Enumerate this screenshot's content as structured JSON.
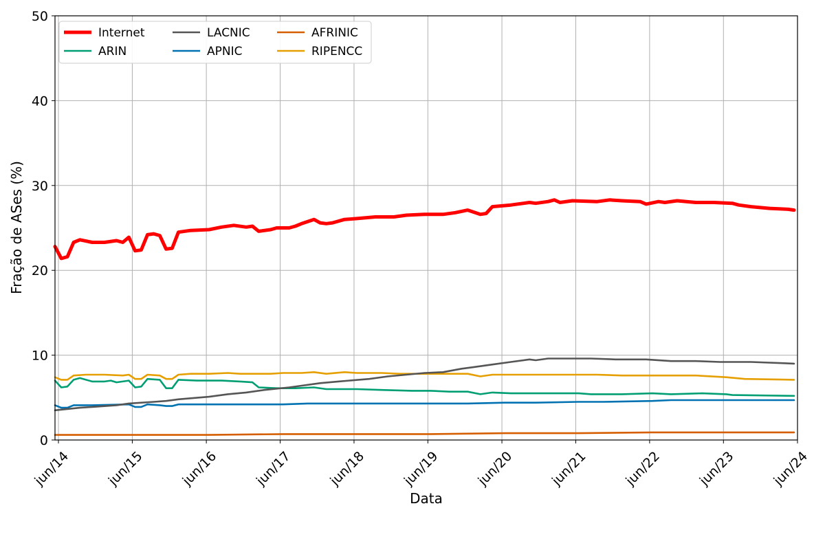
{
  "chart_data": {
    "type": "line",
    "title": "",
    "xlabel": "Data",
    "ylabel": "Fração de ASes (%)",
    "ylim": [
      0,
      50
    ],
    "yticks": [
      0,
      10,
      20,
      30,
      40,
      50
    ],
    "xlim": [
      "2014-05-15",
      "2024-06-01"
    ],
    "xticks": [
      {
        "date": "2014-06-01",
        "label": "jun/14"
      },
      {
        "date": "2015-06-01",
        "label": "jun/15"
      },
      {
        "date": "2016-06-01",
        "label": "jun/16"
      },
      {
        "date": "2017-06-01",
        "label": "jun/17"
      },
      {
        "date": "2018-06-01",
        "label": "jun/18"
      },
      {
        "date": "2019-06-01",
        "label": "jun/19"
      },
      {
        "date": "2020-06-01",
        "label": "jun/20"
      },
      {
        "date": "2021-06-01",
        "label": "jun/21"
      },
      {
        "date": "2022-06-01",
        "label": "jun/22"
      },
      {
        "date": "2023-06-01",
        "label": "jun/23"
      },
      {
        "date": "2024-06-01",
        "label": "jun/24"
      }
    ],
    "grid": true,
    "legend_position": "top-left",
    "legend_columns": 3,
    "series": [
      {
        "name": "Internet",
        "color": "#ff0000",
        "points": [
          [
            "2014-05-15",
            22.8
          ],
          [
            "2014-06-15",
            21.4
          ],
          [
            "2014-07-15",
            21.6
          ],
          [
            "2014-08-15",
            23.3
          ],
          [
            "2014-09-15",
            23.6
          ],
          [
            "2014-11-15",
            23.3
          ],
          [
            "2015-01-15",
            23.3
          ],
          [
            "2015-03-15",
            23.5
          ],
          [
            "2015-04-15",
            23.3
          ],
          [
            "2015-05-15",
            23.9
          ],
          [
            "2015-06-15",
            22.3
          ],
          [
            "2015-07-15",
            22.4
          ],
          [
            "2015-08-15",
            24.2
          ],
          [
            "2015-09-15",
            24.3
          ],
          [
            "2015-10-15",
            24.1
          ],
          [
            "2015-11-15",
            22.5
          ],
          [
            "2015-12-15",
            22.6
          ],
          [
            "2016-01-15",
            24.5
          ],
          [
            "2016-03-15",
            24.7
          ],
          [
            "2016-06-15",
            24.8
          ],
          [
            "2016-08-15",
            25.1
          ],
          [
            "2016-10-15",
            25.3
          ],
          [
            "2016-12-15",
            25.1
          ],
          [
            "2017-01-15",
            25.2
          ],
          [
            "2017-02-15",
            24.6
          ],
          [
            "2017-04-15",
            24.8
          ],
          [
            "2017-05-15",
            25.0
          ],
          [
            "2017-07-15",
            25.0
          ],
          [
            "2017-08-15",
            25.2
          ],
          [
            "2017-09-15",
            25.5
          ],
          [
            "2017-11-15",
            26.0
          ],
          [
            "2017-12-15",
            25.6
          ],
          [
            "2018-01-15",
            25.5
          ],
          [
            "2018-02-15",
            25.6
          ],
          [
            "2018-04-15",
            26.0
          ],
          [
            "2018-06-15",
            26.1
          ],
          [
            "2018-09-15",
            26.3
          ],
          [
            "2018-12-15",
            26.3
          ],
          [
            "2019-02-15",
            26.5
          ],
          [
            "2019-05-15",
            26.6
          ],
          [
            "2019-08-15",
            26.6
          ],
          [
            "2019-10-15",
            26.8
          ],
          [
            "2019-12-15",
            27.1
          ],
          [
            "2020-02-15",
            26.6
          ],
          [
            "2020-03-15",
            26.7
          ],
          [
            "2020-04-15",
            27.5
          ],
          [
            "2020-07-15",
            27.7
          ],
          [
            "2020-10-15",
            28.0
          ],
          [
            "2020-11-15",
            27.9
          ],
          [
            "2021-01-15",
            28.1
          ],
          [
            "2021-02-15",
            28.3
          ],
          [
            "2021-03-15",
            28.0
          ],
          [
            "2021-05-15",
            28.2
          ],
          [
            "2021-09-15",
            28.1
          ],
          [
            "2021-11-15",
            28.3
          ],
          [
            "2022-01-15",
            28.2
          ],
          [
            "2022-04-15",
            28.1
          ],
          [
            "2022-05-15",
            27.8
          ],
          [
            "2022-07-15",
            28.1
          ],
          [
            "2022-08-15",
            28.0
          ],
          [
            "2022-10-15",
            28.2
          ],
          [
            "2023-01-15",
            28.0
          ],
          [
            "2023-04-15",
            28.0
          ],
          [
            "2023-07-15",
            27.9
          ],
          [
            "2023-08-15",
            27.7
          ],
          [
            "2023-10-15",
            27.5
          ],
          [
            "2024-01-15",
            27.3
          ],
          [
            "2024-04-15",
            27.2
          ],
          [
            "2024-05-15",
            27.1
          ]
        ]
      },
      {
        "name": "ARIN",
        "color": "#009e73",
        "points": [
          [
            "2014-05-15",
            7.0
          ],
          [
            "2014-06-15",
            6.2
          ],
          [
            "2014-07-15",
            6.3
          ],
          [
            "2014-08-15",
            7.1
          ],
          [
            "2014-09-15",
            7.3
          ],
          [
            "2014-11-15",
            6.9
          ],
          [
            "2015-01-15",
            6.9
          ],
          [
            "2015-02-15",
            7.0
          ],
          [
            "2015-03-15",
            6.8
          ],
          [
            "2015-05-15",
            7.0
          ],
          [
            "2015-06-15",
            6.2
          ],
          [
            "2015-07-15",
            6.3
          ],
          [
            "2015-08-15",
            7.2
          ],
          [
            "2015-10-15",
            7.1
          ],
          [
            "2015-11-15",
            6.1
          ],
          [
            "2015-12-15",
            6.1
          ],
          [
            "2016-01-15",
            7.1
          ],
          [
            "2016-04-15",
            7.0
          ],
          [
            "2016-08-15",
            7.0
          ],
          [
            "2016-11-15",
            6.9
          ],
          [
            "2017-01-15",
            6.8
          ],
          [
            "2017-02-15",
            6.2
          ],
          [
            "2017-05-15",
            6.1
          ],
          [
            "2017-08-15",
            6.1
          ],
          [
            "2017-11-15",
            6.2
          ],
          [
            "2018-01-15",
            6.0
          ],
          [
            "2018-06-15",
            6.0
          ],
          [
            "2018-10-15",
            5.9
          ],
          [
            "2019-03-15",
            5.8
          ],
          [
            "2019-06-15",
            5.8
          ],
          [
            "2019-09-15",
            5.7
          ],
          [
            "2019-12-15",
            5.7
          ],
          [
            "2020-02-15",
            5.4
          ],
          [
            "2020-04-15",
            5.6
          ],
          [
            "2020-07-15",
            5.5
          ],
          [
            "2020-11-15",
            5.5
          ],
          [
            "2021-06-15",
            5.5
          ],
          [
            "2021-08-15",
            5.4
          ],
          [
            "2022-01-15",
            5.4
          ],
          [
            "2022-06-15",
            5.5
          ],
          [
            "2022-09-15",
            5.4
          ],
          [
            "2023-02-15",
            5.5
          ],
          [
            "2023-06-15",
            5.4
          ],
          [
            "2023-07-15",
            5.3
          ],
          [
            "2024-05-15",
            5.2
          ]
        ]
      },
      {
        "name": "LACNIC",
        "color": "#555555",
        "points": [
          [
            "2014-05-15",
            3.5
          ],
          [
            "2014-09-15",
            3.8
          ],
          [
            "2014-11-15",
            3.9
          ],
          [
            "2015-03-15",
            4.1
          ],
          [
            "2015-05-15",
            4.3
          ],
          [
            "2015-09-15",
            4.5
          ],
          [
            "2015-11-15",
            4.6
          ],
          [
            "2016-01-15",
            4.8
          ],
          [
            "2016-06-15",
            5.1
          ],
          [
            "2016-09-15",
            5.4
          ],
          [
            "2016-12-15",
            5.6
          ],
          [
            "2017-03-15",
            5.9
          ],
          [
            "2017-07-15",
            6.2
          ],
          [
            "2017-09-15",
            6.4
          ],
          [
            "2017-12-15",
            6.7
          ],
          [
            "2018-03-15",
            6.9
          ],
          [
            "2018-08-15",
            7.2
          ],
          [
            "2018-11-15",
            7.5
          ],
          [
            "2019-02-15",
            7.7
          ],
          [
            "2019-05-15",
            7.9
          ],
          [
            "2019-08-15",
            8.0
          ],
          [
            "2019-11-15",
            8.4
          ],
          [
            "2020-01-15",
            8.6
          ],
          [
            "2020-04-15",
            8.9
          ],
          [
            "2020-07-15",
            9.2
          ],
          [
            "2020-10-15",
            9.5
          ],
          [
            "2020-11-15",
            9.4
          ],
          [
            "2021-01-15",
            9.6
          ],
          [
            "2021-05-15",
            9.6
          ],
          [
            "2021-08-15",
            9.6
          ],
          [
            "2021-12-15",
            9.5
          ],
          [
            "2022-05-15",
            9.5
          ],
          [
            "2022-09-15",
            9.3
          ],
          [
            "2023-01-15",
            9.3
          ],
          [
            "2023-05-15",
            9.2
          ],
          [
            "2023-10-15",
            9.2
          ],
          [
            "2024-05-15",
            9.0
          ]
        ]
      },
      {
        "name": "APNIC",
        "color": "#0072b2",
        "points": [
          [
            "2014-05-15",
            4.1
          ],
          [
            "2014-06-15",
            3.8
          ],
          [
            "2014-07-15",
            3.8
          ],
          [
            "2014-08-15",
            4.1
          ],
          [
            "2014-11-15",
            4.1
          ],
          [
            "2015-05-15",
            4.2
          ],
          [
            "2015-06-15",
            3.9
          ],
          [
            "2015-07-15",
            3.9
          ],
          [
            "2015-08-15",
            4.2
          ],
          [
            "2015-10-15",
            4.1
          ],
          [
            "2015-11-15",
            4.0
          ],
          [
            "2015-12-15",
            4.0
          ],
          [
            "2016-01-15",
            4.2
          ],
          [
            "2016-08-15",
            4.2
          ],
          [
            "2017-01-15",
            4.2
          ],
          [
            "2017-06-15",
            4.2
          ],
          [
            "2017-10-15",
            4.3
          ],
          [
            "2018-06-15",
            4.3
          ],
          [
            "2019-01-15",
            4.3
          ],
          [
            "2019-06-15",
            4.3
          ],
          [
            "2019-12-15",
            4.3
          ],
          [
            "2020-06-15",
            4.4
          ],
          [
            "2020-11-15",
            4.4
          ],
          [
            "2021-06-15",
            4.5
          ],
          [
            "2021-10-15",
            4.5
          ],
          [
            "2022-06-15",
            4.6
          ],
          [
            "2022-09-15",
            4.7
          ],
          [
            "2023-01-15",
            4.7
          ],
          [
            "2023-06-15",
            4.7
          ],
          [
            "2024-05-15",
            4.7
          ]
        ]
      },
      {
        "name": "AFRINIC",
        "color": "#d55e00",
        "points": [
          [
            "2014-05-15",
            0.6
          ],
          [
            "2015-06-15",
            0.6
          ],
          [
            "2016-06-15",
            0.6
          ],
          [
            "2017-06-15",
            0.7
          ],
          [
            "2018-06-15",
            0.7
          ],
          [
            "2019-06-15",
            0.7
          ],
          [
            "2020-06-15",
            0.8
          ],
          [
            "2021-06-15",
            0.8
          ],
          [
            "2022-06-15",
            0.9
          ],
          [
            "2023-06-15",
            0.9
          ],
          [
            "2024-05-15",
            0.9
          ]
        ]
      },
      {
        "name": "RIPENCC",
        "color": "#e69f00",
        "points": [
          [
            "2014-05-15",
            7.4
          ],
          [
            "2014-06-15",
            7.1
          ],
          [
            "2014-07-15",
            7.1
          ],
          [
            "2014-08-15",
            7.6
          ],
          [
            "2014-10-15",
            7.7
          ],
          [
            "2015-01-15",
            7.7
          ],
          [
            "2015-04-15",
            7.6
          ],
          [
            "2015-05-15",
            7.7
          ],
          [
            "2015-06-15",
            7.2
          ],
          [
            "2015-07-15",
            7.2
          ],
          [
            "2015-08-15",
            7.7
          ],
          [
            "2015-10-15",
            7.6
          ],
          [
            "2015-11-15",
            7.2
          ],
          [
            "2015-12-15",
            7.2
          ],
          [
            "2016-01-15",
            7.7
          ],
          [
            "2016-03-15",
            7.8
          ],
          [
            "2016-06-15",
            7.8
          ],
          [
            "2016-09-15",
            7.9
          ],
          [
            "2016-11-15",
            7.8
          ],
          [
            "2017-01-15",
            7.8
          ],
          [
            "2017-04-15",
            7.8
          ],
          [
            "2017-06-15",
            7.9
          ],
          [
            "2017-09-15",
            7.9
          ],
          [
            "2017-11-15",
            8.0
          ],
          [
            "2018-01-15",
            7.8
          ],
          [
            "2018-04-15",
            8.0
          ],
          [
            "2018-06-15",
            7.9
          ],
          [
            "2018-10-15",
            7.9
          ],
          [
            "2019-01-15",
            7.8
          ],
          [
            "2019-06-15",
            7.8
          ],
          [
            "2019-12-15",
            7.8
          ],
          [
            "2020-02-15",
            7.5
          ],
          [
            "2020-04-15",
            7.7
          ],
          [
            "2020-07-15",
            7.7
          ],
          [
            "2021-01-15",
            7.7
          ],
          [
            "2021-06-15",
            7.7
          ],
          [
            "2021-09-15",
            7.7
          ],
          [
            "2022-01-15",
            7.6
          ],
          [
            "2022-06-15",
            7.6
          ],
          [
            "2022-09-15",
            7.6
          ],
          [
            "2023-01-15",
            7.6
          ],
          [
            "2023-06-15",
            7.4
          ],
          [
            "2023-09-15",
            7.2
          ],
          [
            "2024-05-15",
            7.1
          ]
        ]
      }
    ]
  }
}
